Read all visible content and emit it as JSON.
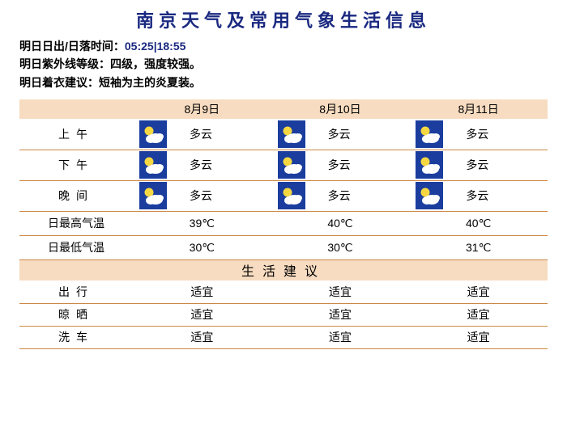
{
  "title": "南京天气及常用气象生活信息",
  "info": {
    "line1_label": "明日日出/日落时间：",
    "line1_value": "05:25|18:55",
    "line2": "明日紫外线等级：四级，强度较强。",
    "line3": "明日着衣建议：短袖为主的炎夏装。"
  },
  "dates": [
    "8月9日",
    "8月10日",
    "8月11日"
  ],
  "periods": {
    "morning": {
      "label": "上午",
      "cond": [
        "多云",
        "多云",
        "多云"
      ]
    },
    "afternoon": {
      "label": "下午",
      "cond": [
        "多云",
        "多云",
        "多云"
      ]
    },
    "evening": {
      "label": "晚间",
      "cond": [
        "多云",
        "多云",
        "多云"
      ]
    }
  },
  "high": {
    "label": "日最高气温",
    "vals": [
      "39℃",
      "40℃",
      "40℃"
    ]
  },
  "low": {
    "label": "日最低气温",
    "vals": [
      "30℃",
      "30℃",
      "31℃"
    ]
  },
  "advice_header": "生活建议",
  "advice": [
    {
      "label": "出行",
      "vals": [
        "适宜",
        "适宜",
        "适宜"
      ]
    },
    {
      "label": "晾晒",
      "vals": [
        "适宜",
        "适宜",
        "适宜"
      ]
    },
    {
      "label": "洗车",
      "vals": [
        "适宜",
        "适宜",
        "适宜"
      ]
    }
  ],
  "icon_colors": {
    "bg": "#1a3d9e",
    "sun": "#f5d742",
    "cloud": "#ffffff"
  }
}
